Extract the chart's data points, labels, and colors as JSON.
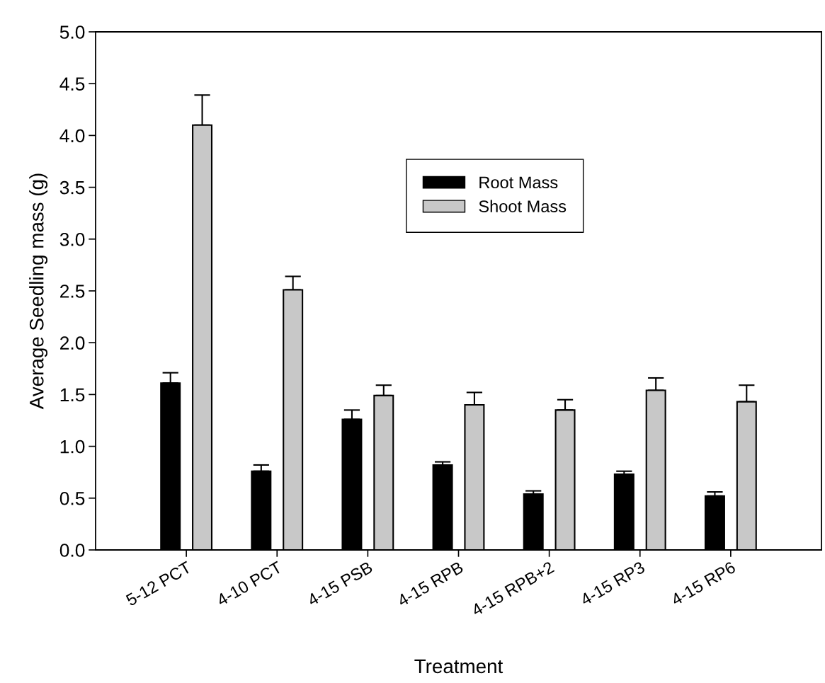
{
  "chart_data": {
    "type": "bar",
    "xlabel": "Treatment",
    "ylabel": "Average Seedling mass (g)",
    "categories": [
      "5-12 PCT",
      "4-10 PCT",
      "4-15 PSB",
      "4-15 RPB",
      "4-15 RPB+2",
      "4-15 RP3",
      "4-15 RP6"
    ],
    "series": [
      {
        "name": "Root Mass",
        "color": "#000000",
        "values": [
          1.61,
          0.76,
          1.26,
          0.82,
          0.54,
          0.73,
          0.52
        ],
        "errors": [
          [
            1.61,
            1.71
          ],
          [
            0.76,
            0.82
          ],
          [
            1.26,
            1.35
          ],
          [
            0.82,
            0.85
          ],
          [
            0.54,
            0.57
          ],
          [
            0.73,
            0.76
          ],
          [
            0.52,
            0.56
          ]
        ]
      },
      {
        "name": "Shoot Mass",
        "color": "#c8c8c8",
        "values": [
          4.1,
          2.51,
          1.49,
          1.4,
          1.35,
          1.54,
          1.43
        ],
        "errors": [
          [
            4.1,
            4.39
          ],
          [
            2.51,
            2.64
          ],
          [
            1.49,
            1.59
          ],
          [
            1.4,
            1.52
          ],
          [
            1.35,
            1.45
          ],
          [
            1.54,
            1.66
          ],
          [
            1.43,
            1.59
          ]
        ]
      }
    ],
    "ylim": [
      0,
      5
    ],
    "yticks": [
      {
        "value": 0,
        "label": "0.0"
      },
      0.5,
      {
        "value": 1,
        "label": "1.0"
      },
      1.5,
      {
        "value": 2,
        "label": "2.0"
      },
      2.5,
      {
        "value": 3,
        "label": "3.0"
      },
      3.5,
      {
        "value": 4,
        "label": "4.0"
      },
      4.5,
      {
        "value": 5,
        "label": "5.0"
      }
    ],
    "grid": false,
    "legend": "top"
  }
}
